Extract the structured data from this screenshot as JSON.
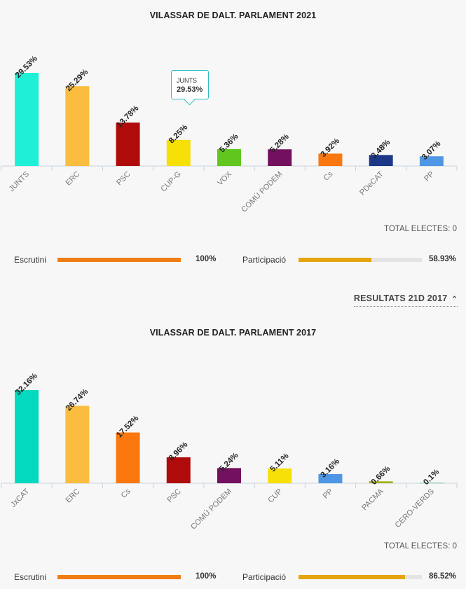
{
  "chart_data": [
    {
      "type": "bar",
      "title": "VILASSAR DE DALT. PARLAMENT 2021",
      "categories": [
        "JUNTS",
        "ERC",
        "PSC",
        "CUP-G",
        "VOX",
        "COMÚ PODEM",
        "Cs",
        "PDeCAT",
        "PP"
      ],
      "values": [
        29.53,
        25.29,
        13.78,
        8.25,
        5.36,
        5.28,
        3.92,
        3.48,
        3.07
      ],
      "data_labels": [
        "29.53%",
        "25.29%",
        "13.78%",
        "8.25%",
        "5.36%",
        "5.28%",
        "3.92%",
        "3.48%",
        "3.07%"
      ],
      "colors": [
        "#1ef0d8",
        "#fabd3f",
        "#b00b0b",
        "#f7df08",
        "#61c71e",
        "#74115e",
        "#fa780f",
        "#1d3889",
        "#4f97e5"
      ],
      "ylim": [
        0,
        29.53
      ],
      "grid": false,
      "tooltip": {
        "label": "JUNTS",
        "value": "29.53%"
      }
    },
    {
      "type": "bar",
      "title": "VILASSAR DE DALT. PARLAMENT 2017",
      "categories": [
        "JxCAT",
        "ERC",
        "Cs",
        "PSC",
        "COMÚ PODEM",
        "CUP",
        "PP",
        "PACMA",
        "CERO-VERDS"
      ],
      "values": [
        32.16,
        26.74,
        17.52,
        8.96,
        5.24,
        5.11,
        3.16,
        0.66,
        0.1
      ],
      "data_labels": [
        "32.16%",
        "26.74%",
        "17.52%",
        "8.96%",
        "5.24%",
        "5.11%",
        "3.16%",
        "0.66%",
        "0.1%"
      ],
      "colors": [
        "#03d9bf",
        "#fabd3f",
        "#fa780f",
        "#b00b0b",
        "#74115e",
        "#f7df08",
        "#4f97e5",
        "#a3b01c",
        "#00a35a"
      ],
      "ylim": [
        0,
        32.16
      ],
      "grid": false
    }
  ],
  "section2021": {
    "total": "TOTAL ELECTES: 0",
    "escrutini": {
      "label": "Escrutini",
      "value": "100%",
      "fraction": 1.0,
      "color": "#f07d14"
    },
    "participacio": {
      "label": "Participació",
      "value": "58.93%",
      "fraction": 0.5893,
      "color": "#e5a50e"
    }
  },
  "results_toggle": {
    "label": "RESULTATS 21D 2017",
    "icon": "chevron-up-icon"
  },
  "section2017": {
    "total": "TOTAL ELECTES: 0",
    "escrutini": {
      "label": "Escrutini",
      "value": "100%",
      "fraction": 1.0,
      "color": "#f07d14"
    },
    "participacio": {
      "label": "Participació",
      "value": "86.52%",
      "fraction": 0.8652,
      "color": "#e5a50e"
    }
  }
}
